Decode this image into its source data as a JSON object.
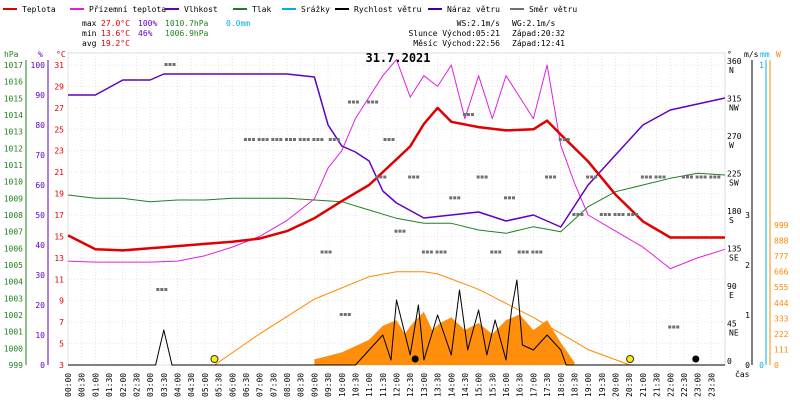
{
  "chart_data": {
    "type": "line",
    "title": "31.7.2021",
    "colors": {
      "teplota": "#e00000",
      "prizemni": "#e020e0",
      "vlhkost": "#6000c0",
      "tlak": "#208020",
      "srazky": "#00b0e0",
      "rychlost": "#000000",
      "naraz": "#4000a0",
      "smer": "#707070",
      "sun": "#ff8800",
      "radiation": "#ff8800"
    },
    "legend": [
      {
        "key": "teplota",
        "label": "Teplota"
      },
      {
        "key": "prizemni",
        "label": "Přízemní teplota"
      },
      {
        "key": "vlhkost",
        "label": "Vlhkost"
      },
      {
        "key": "tlak",
        "label": "Tlak"
      },
      {
        "key": "srazky",
        "label": "Srážky"
      },
      {
        "key": "rychlost",
        "label": "Rychlost větru"
      },
      {
        "key": "naraz",
        "label": "Náraz větru"
      },
      {
        "key": "smer",
        "label": "Směr větru"
      }
    ],
    "stats": {
      "max": {
        "label": "max",
        "temp": "27.0°C",
        "hum": "100%",
        "press": "1010.7hPa",
        "rain": "0.0mm"
      },
      "min": {
        "label": "min",
        "temp": "13.6°C",
        "hum": "46%",
        "press": "1006.9hPa"
      },
      "avg": {
        "label": "avg",
        "temp": "19.2°C"
      }
    },
    "info": [
      {
        "label": "WS:2.1m/s",
        "value": "WG:2.1m/s"
      },
      {
        "label": "Slunce Východ:05:21",
        "value": "Západ:20:32"
      },
      {
        "label": "Měsíc Východ:22:56",
        "value": "Západ:12:41"
      }
    ],
    "axes": {
      "hpa_unit": "hPa",
      "pct_unit": "%",
      "temp_unit": "°C",
      "deg_unit": "°",
      "ms_unit": "m/s",
      "mm_unit": "mm",
      "w_unit": "W",
      "time_unit": "čas",
      "hpa_ticks": [
        "999",
        "1000",
        "1001",
        "1002",
        "1003",
        "1004",
        "1005",
        "1006",
        "1007",
        "1008",
        "1009",
        "1010",
        "1011",
        "1012",
        "1013",
        "1014",
        "1015",
        "1016",
        "1017"
      ],
      "pct_ticks": [
        "0",
        "10",
        "20",
        "30",
        "40",
        "50",
        "60",
        "70",
        "80",
        "90",
        "100"
      ],
      "temp_ticks": [
        "3",
        "5",
        "7",
        "9",
        "11",
        "13",
        "15",
        "17",
        "19",
        "21",
        "23",
        "25",
        "27",
        "29",
        "31"
      ],
      "deg_ticks": [
        {
          "deg": "0",
          "dir": ""
        },
        {
          "deg": "45",
          "dir": "NE"
        },
        {
          "deg": "90",
          "dir": "E"
        },
        {
          "deg": "135",
          "dir": "SE"
        },
        {
          "deg": "180",
          "dir": "S"
        },
        {
          "deg": "225",
          "dir": "SW"
        },
        {
          "deg": "270",
          "dir": "W"
        },
        {
          "deg": "315",
          "dir": "NW"
        },
        {
          "deg": "360",
          "dir": "N"
        }
      ],
      "ms_ticks": [
        "0",
        "1",
        "2",
        "3"
      ],
      "mm_ticks": [
        "0",
        "1"
      ],
      "w_ticks": [
        "0",
        "111",
        "222",
        "333",
        "444",
        "555",
        "666",
        "777",
        "888",
        "999"
      ],
      "time_ticks": [
        "00:00",
        "00:30",
        "01:00",
        "01:30",
        "02:00",
        "02:30",
        "03:00",
        "03:30",
        "04:00",
        "04:30",
        "05:00",
        "05:30",
        "06:00",
        "06:30",
        "07:00",
        "07:30",
        "08:00",
        "08:30",
        "09:00",
        "09:30",
        "10:00",
        "10:30",
        "11:00",
        "11:30",
        "12:00",
        "12:30",
        "13:00",
        "13:30",
        "14:00",
        "14:30",
        "15:00",
        "15:30",
        "16:00",
        "16:30",
        "17:00",
        "17:30",
        "18:00",
        "18:30",
        "19:00",
        "19:30",
        "20:00",
        "20:30",
        "21:00",
        "21:30",
        "22:00",
        "22:30",
        "23:00",
        "23:30"
      ]
    },
    "series": {
      "teplota": {
        "x": [
          0,
          1,
          2,
          3,
          4,
          5,
          6,
          7,
          8,
          9,
          10,
          11,
          12,
          12.5,
          13,
          13.5,
          14,
          15,
          16,
          17,
          17.5,
          18,
          19,
          20,
          21,
          22,
          23,
          24
        ],
        "y": [
          15.1,
          13.8,
          13.7,
          13.9,
          14.1,
          14.3,
          14.5,
          14.8,
          15.5,
          16.7,
          18.3,
          19.8,
          22.2,
          23.4,
          25.5,
          27.0,
          25.7,
          25.2,
          24.9,
          25.0,
          25.8,
          24.5,
          22.0,
          18.9,
          16.4,
          14.9,
          14.9,
          14.9
        ]
      },
      "prizemni": {
        "x": [
          0,
          1,
          2,
          3,
          4,
          5,
          6,
          7,
          8,
          9,
          9.5,
          10,
          10.5,
          11,
          11.5,
          12,
          12.5,
          13,
          13.5,
          14,
          14.5,
          15,
          15.5,
          16,
          16.5,
          17,
          17.5,
          18,
          18.5,
          19,
          20,
          21,
          22,
          23,
          24
        ],
        "y": [
          12.7,
          12.6,
          12.6,
          12.6,
          12.7,
          13.2,
          14.0,
          15.0,
          16.5,
          18.5,
          21.4,
          23.0,
          26.0,
          28.0,
          30.0,
          31.5,
          28.0,
          30.0,
          29.0,
          31.0,
          26.0,
          30.0,
          26.0,
          30.0,
          28.0,
          26.0,
          31.0,
          23.5,
          20.0,
          17.0,
          15.5,
          14.0,
          12.0,
          13.0,
          13.8
        ]
      },
      "vlhkost": {
        "x": [
          0,
          1,
          2,
          3,
          3.5,
          4,
          5,
          6,
          7,
          8,
          9,
          9.5,
          10,
          10.5,
          11,
          11.5,
          12,
          13,
          14,
          15,
          16,
          17,
          18,
          19,
          20,
          21,
          22,
          23,
          24
        ],
        "y": [
          90,
          90,
          95,
          95,
          97,
          97,
          97,
          97,
          97,
          97,
          96,
          80,
          73,
          71,
          68,
          58,
          54,
          49,
          50,
          51,
          48,
          50,
          46,
          60,
          70,
          80,
          85,
          87,
          89
        ]
      },
      "tlak": {
        "x": [
          0,
          1,
          2,
          3,
          4,
          5,
          6,
          7,
          8,
          9,
          10,
          11,
          12,
          13,
          14,
          15,
          16,
          17,
          18,
          19,
          20,
          21,
          22,
          23,
          24
        ],
        "y": [
          1009.2,
          1009.0,
          1009.0,
          1008.8,
          1008.9,
          1008.9,
          1009.0,
          1009.0,
          1009.0,
          1008.9,
          1008.8,
          1008.3,
          1007.8,
          1007.5,
          1007.5,
          1007.1,
          1006.9,
          1007.3,
          1007.0,
          1008.5,
          1009.4,
          1009.8,
          1010.2,
          1010.5,
          1010.4
        ]
      },
      "sun_elevation": {
        "x": [
          5.35,
          7,
          9,
          11,
          12,
          13,
          13.5,
          15,
          17,
          19,
          20.53
        ],
        "y": [
          0,
          222,
          470,
          630,
          666,
          666,
          650,
          540,
          340,
          110,
          0
        ]
      },
      "radiation": {
        "x": [
          9.0,
          10.0,
          11.0,
          11.5,
          12.0,
          12.3,
          12.6,
          13.0,
          13.3,
          13.6,
          14.0,
          14.5,
          15.0,
          15.5,
          16.0,
          16.5,
          17.0,
          17.5,
          18.0,
          18.5
        ],
        "y": [
          40,
          90,
          180,
          280,
          320,
          222,
          300,
          380,
          250,
          300,
          340,
          250,
          300,
          220,
          320,
          360,
          250,
          320,
          160,
          20
        ]
      },
      "rychlost": {
        "x": [
          0,
          3.2,
          3.5,
          3.8,
          10.5,
          11,
          11.5,
          11.8,
          12,
          12.5,
          12.8,
          13,
          13.5,
          14,
          14.3,
          14.6,
          15,
          15.3,
          15.6,
          16,
          16.2,
          16.4,
          16.6,
          17,
          17.5,
          18,
          18.2,
          24
        ],
        "y": [
          0,
          0,
          0.7,
          0,
          0,
          0.3,
          0.6,
          0.1,
          1.3,
          0.2,
          1.2,
          0.1,
          1.0,
          0.2,
          1.5,
          0.3,
          1.1,
          0.2,
          0.9,
          0.1,
          1.1,
          1.7,
          0.4,
          0.3,
          0.6,
          0.3,
          0,
          0
        ]
      },
      "smer": {
        "x": [
          3.3,
          3.6,
          6.5,
          7,
          7.5,
          8,
          8.5,
          9,
          9.3,
          9.6,
          10,
          10.3,
          11,
          11.3,
          11.6,
          12,
          12.5,
          13,
          13.5,
          14,
          14.5,
          15,
          15.5,
          16,
          16.5,
          17,
          17.5,
          18,
          18.5,
          19,
          19.5,
          20,
          20.5,
          21,
          21.5,
          22,
          22.5,
          23,
          23.5
        ],
        "deg": [
          90,
          360,
          270,
          270,
          270,
          270,
          270,
          270,
          135,
          270,
          60,
          315,
          315,
          225,
          270,
          160,
          225,
          135,
          135,
          200,
          300,
          225,
          135,
          200,
          135,
          135,
          225,
          270,
          180,
          225,
          180,
          180,
          180,
          225,
          225,
          45,
          225,
          225,
          225
        ]
      }
    },
    "markers": {
      "sunrise": "05:21",
      "sunset": "20:32",
      "moonrise": "22:56",
      "moonset": "12:41"
    }
  }
}
